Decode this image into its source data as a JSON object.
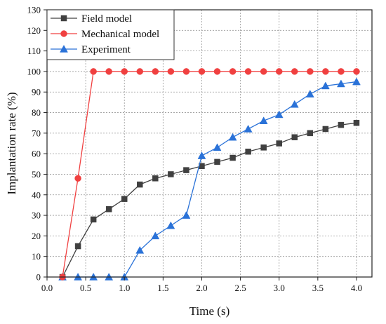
{
  "chart_data": {
    "type": "line",
    "xlabel": "Time (s)",
    "ylabel": "Implantation rate (%)",
    "xlim": [
      0.0,
      4.2
    ],
    "ylim": [
      0,
      130
    ],
    "x_ticks": [
      "0.0",
      "0.5",
      "1.0",
      "1.5",
      "2.0",
      "2.5",
      "3.0",
      "3.5",
      "4.0"
    ],
    "y_ticks": [
      "0",
      "10",
      "20",
      "30",
      "40",
      "50",
      "60",
      "70",
      "80",
      "90",
      "100",
      "110",
      "120",
      "130"
    ],
    "grid": true,
    "legend_position": "top-left",
    "series": [
      {
        "name": "Field model",
        "color": "#404040",
        "marker": "square",
        "x": [
          0.2,
          0.4,
          0.6,
          0.8,
          1.0,
          1.2,
          1.4,
          1.6,
          1.8,
          2.0,
          2.2,
          2.4,
          2.6,
          2.8,
          3.0,
          3.2,
          3.4,
          3.6,
          3.8,
          4.0
        ],
        "y": [
          0,
          15,
          28,
          33,
          38,
          45,
          48,
          50,
          52,
          54,
          56,
          58,
          61,
          63,
          65,
          68,
          70,
          72,
          74,
          75
        ]
      },
      {
        "name": "Mechanical model",
        "color": "#f04040",
        "marker": "circle",
        "x": [
          0.2,
          0.4,
          0.6,
          0.8,
          1.0,
          1.2,
          1.4,
          1.6,
          1.8,
          2.0,
          2.2,
          2.4,
          2.6,
          2.8,
          3.0,
          3.2,
          3.4,
          3.6,
          3.8,
          4.0
        ],
        "y": [
          0,
          48,
          100,
          100,
          100,
          100,
          100,
          100,
          100,
          100,
          100,
          100,
          100,
          100,
          100,
          100,
          100,
          100,
          100,
          100
        ]
      },
      {
        "name": "Experiment",
        "color": "#2a72d8",
        "marker": "triangle",
        "x": [
          0.2,
          0.4,
          0.6,
          0.8,
          1.0,
          1.2,
          1.4,
          1.6,
          1.8,
          2.0,
          2.2,
          2.4,
          2.6,
          2.8,
          3.0,
          3.2,
          3.4,
          3.6,
          3.8,
          4.0
        ],
        "y": [
          0,
          0,
          0,
          0,
          0,
          13,
          20,
          25,
          30,
          59,
          63,
          68,
          72,
          76,
          79,
          84,
          89,
          93,
          94,
          95
        ]
      }
    ]
  }
}
